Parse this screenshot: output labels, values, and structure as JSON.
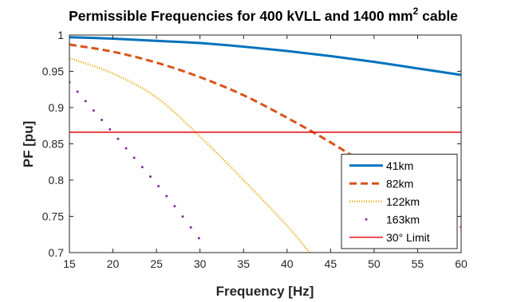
{
  "chart_data": {
    "type": "line",
    "title": "Permissible Frequencies for 400 kVLL and 1400 mm",
    "title_superscript": "2",
    "title_suffix": " cable",
    "xlabel": "Frequency [Hz]",
    "ylabel": "PF [pu]",
    "xlim": [
      15,
      60
    ],
    "ylim": [
      0.7,
      1.0
    ],
    "xticks": [
      15,
      20,
      25,
      30,
      35,
      40,
      45,
      50,
      55,
      60
    ],
    "xtick_labels": [
      "15",
      "20",
      "25",
      "30",
      "35",
      "40",
      "45",
      "50",
      "55",
      "60"
    ],
    "yticks": [
      0.7,
      0.75,
      0.8,
      0.85,
      0.9,
      0.95,
      1.0
    ],
    "ytick_labels": [
      "0.7",
      "0.75",
      "0.8",
      "0.85",
      "0.9",
      "0.95",
      "1"
    ],
    "grid": false,
    "legend_position": "bottom-right",
    "series": [
      {
        "name": "41km",
        "color": "#0072bd",
        "style": "solid",
        "x": [
          15,
          20,
          25,
          30,
          35,
          40,
          45,
          50,
          55,
          60
        ],
        "y": [
          0.997,
          0.995,
          0.992,
          0.989,
          0.984,
          0.978,
          0.971,
          0.963,
          0.954,
          0.945
        ]
      },
      {
        "name": "82km",
        "color": "#d95319",
        "style": "dashed",
        "x": [
          15,
          20,
          25,
          30,
          35,
          40,
          45,
          50,
          55,
          60
        ],
        "y": [
          0.987,
          0.977,
          0.962,
          0.942,
          0.917,
          0.886,
          0.852,
          0.814,
          0.774,
          0.735
        ]
      },
      {
        "name": "122km",
        "color": "#edb120",
        "style": "dotted",
        "x": [
          15,
          20,
          25,
          30,
          35,
          40,
          42.6
        ],
        "y": [
          0.968,
          0.947,
          0.914,
          0.86,
          0.8,
          0.737,
          0.7
        ]
      },
      {
        "name": "163km",
        "color": "#7e2f8e",
        "style": "sparse-dots",
        "x": [
          15,
          17.5,
          20,
          22.5,
          25,
          27.5,
          30
        ],
        "y": [
          0.935,
          0.9,
          0.865,
          0.83,
          0.795,
          0.758,
          0.718
        ]
      },
      {
        "name": "30° Limit",
        "color": "#e31a1c",
        "style": "solid-thin",
        "x": [
          15,
          60
        ],
        "y": [
          0.866,
          0.866
        ]
      }
    ]
  }
}
